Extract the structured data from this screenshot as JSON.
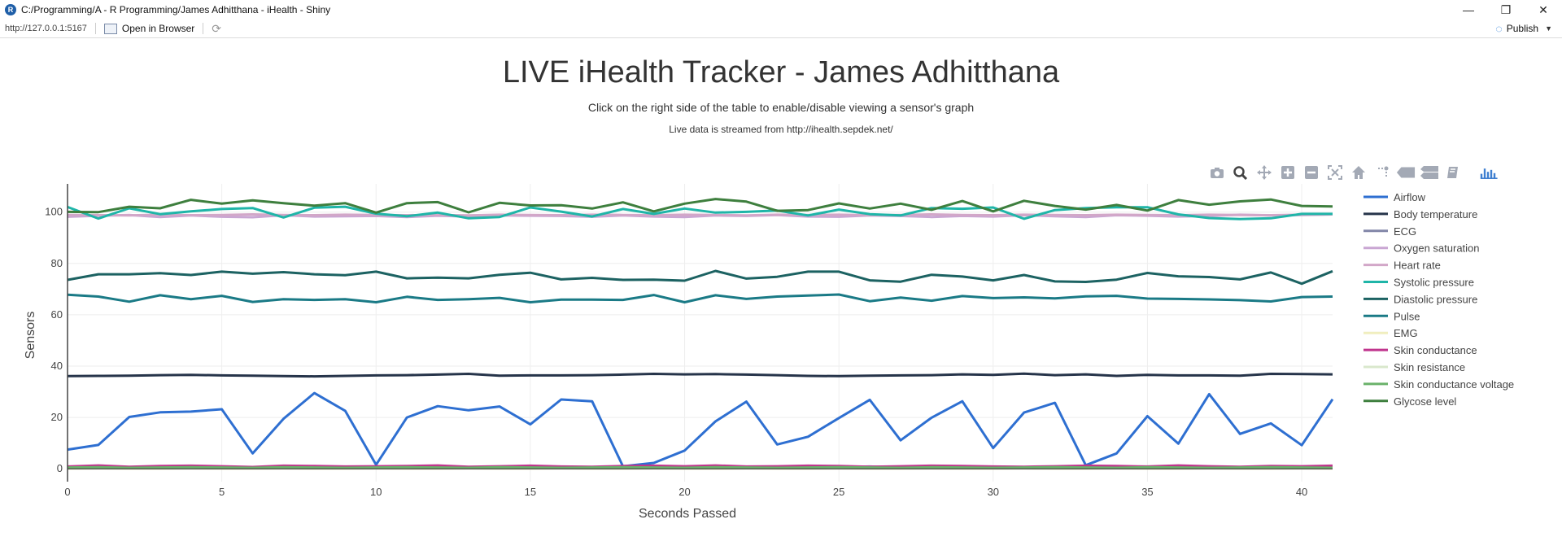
{
  "window": {
    "title": "C:/Programming/A - R Programming/James Adhitthana - iHealth - Shiny",
    "minimize": "—",
    "restore": "❐",
    "close": "✕"
  },
  "toolbar": {
    "url": "http://127.0.0.1:5167",
    "open_in_browser": "Open in Browser",
    "publish": "Publish"
  },
  "page": {
    "title": "LIVE iHealth Tracker - James Adhitthana",
    "subtitle": "Click on the right side of the table to enable/disable viewing a sensor's graph",
    "source_note": "Live data is streamed from http://ihealth.sepdek.net/"
  },
  "modebar": [
    "camera-icon",
    "zoom-icon",
    "pan-icon",
    "zoom-in-icon",
    "zoom-out-icon",
    "autoscale-icon",
    "home-icon",
    "spike-lines-icon",
    "hover-closest-icon",
    "hover-compare-icon",
    "edit-icon",
    "plotly-logo-icon"
  ],
  "chart_data": {
    "type": "line",
    "xlabel": "Seconds Passed",
    "ylabel": "Sensors",
    "xlim": [
      0,
      41
    ],
    "ylim": [
      -5,
      111
    ],
    "xticks": [
      0,
      5,
      10,
      15,
      20,
      25,
      30,
      35,
      40
    ],
    "yticks": [
      0,
      20,
      40,
      60,
      80,
      100
    ],
    "grid": true,
    "legend_position": "right",
    "x": [
      0,
      1,
      2,
      3,
      4,
      5,
      6,
      7,
      8,
      9,
      10,
      11,
      12,
      13,
      14,
      15,
      16,
      17,
      18,
      19,
      20,
      21,
      22,
      23,
      24,
      25,
      26,
      27,
      28,
      29,
      30,
      31,
      32,
      33,
      34,
      35,
      36,
      37,
      38,
      39,
      40,
      41
    ],
    "series": [
      {
        "name": "Airflow",
        "color": "#2e6fd1",
        "values": [
          7.5,
          9.3,
          20.2,
          22.0,
          22.3,
          23.2,
          6.0,
          19.5,
          29.5,
          22.6,
          1.6,
          20.0,
          24.4,
          22.8,
          24.3,
          17.3,
          27.0,
          26.3,
          1.0,
          2.3,
          7.1,
          18.5,
          26.2,
          9.5,
          12.5,
          19.8,
          26.9,
          11.1,
          19.9,
          26.3,
          8.1,
          21.9,
          25.7,
          1.4,
          6.0,
          20.5,
          9.8,
          29.1,
          13.6,
          17.7,
          9.2,
          27.1
        ]
      },
      {
        "name": "Body temperature",
        "color": "#26344a",
        "values": [
          36.1,
          36.2,
          36.3,
          36.5,
          36.6,
          36.4,
          36.3,
          36.1,
          36.0,
          36.2,
          36.4,
          36.5,
          36.7,
          37.0,
          36.3,
          36.4,
          36.4,
          36.5,
          36.7,
          37.0,
          36.8,
          36.9,
          36.7,
          36.5,
          36.2,
          36.1,
          36.3,
          36.4,
          36.5,
          36.8,
          36.6,
          37.1,
          36.5,
          36.8,
          36.2,
          36.6,
          36.4,
          36.4,
          36.3,
          37.0,
          36.9,
          36.8
        ]
      },
      {
        "name": "ECG",
        "color": "#8286a8",
        "values": [
          0.6,
          0.8,
          0.5,
          0.7,
          0.9,
          0.6,
          0.4,
          0.8,
          0.7,
          0.5,
          0.6,
          0.7,
          0.9,
          0.5,
          0.6,
          0.8,
          0.7,
          0.5,
          0.6,
          0.9,
          0.7,
          0.6,
          0.5,
          0.8,
          0.7,
          0.6,
          0.9,
          0.5,
          0.7,
          0.8,
          0.6,
          0.5,
          0.7,
          0.9,
          0.6,
          0.8,
          0.7,
          0.5,
          0.6,
          0.8,
          0.7,
          0.6
        ]
      },
      {
        "name": "Oxygen saturation",
        "color": "#c9a6d3",
        "values": [
          98.2,
          98.6,
          98.9,
          98.1,
          98.7,
          98.2,
          98.0,
          98.8,
          98.3,
          98.4,
          98.5,
          98.1,
          98.6,
          98.3,
          98.7,
          98.6,
          98.5,
          98.2,
          98.7,
          98.3,
          98.1,
          98.7,
          98.5,
          98.9,
          98.3,
          98.2,
          98.7,
          98.5,
          98.1,
          98.5,
          98.3,
          98.8,
          98.4,
          98.1,
          98.8,
          98.6,
          98.3,
          98.5,
          99.0,
          98.7,
          98.9,
          99.1
        ]
      },
      {
        "name": "Heart rate",
        "color": "#d2a7c8",
        "values": [
          98.9,
          98.8,
          98.7,
          99.0,
          98.8,
          98.9,
          99.1,
          98.9,
          98.8,
          99.0,
          98.9,
          98.8,
          98.9,
          98.7,
          99.0,
          98.9,
          98.8,
          99.0,
          98.9,
          98.8,
          99.0,
          98.9,
          98.7,
          99.0,
          98.9,
          99.0,
          98.8,
          98.9,
          99.1,
          98.9,
          98.8,
          99.0,
          98.9,
          98.8,
          99.0,
          98.9,
          98.8,
          99.0,
          98.9,
          98.8,
          99.0,
          99.1
        ]
      },
      {
        "name": "Systolic pressure",
        "color": "#1fb5a8",
        "values": [
          102.0,
          97.5,
          101.5,
          99.2,
          100.3,
          101.2,
          101.6,
          97.9,
          101.7,
          102.1,
          99.4,
          98.4,
          99.8,
          97.6,
          98.1,
          101.8,
          100.2,
          98.3,
          101.2,
          99.3,
          101.4,
          99.8,
          100.1,
          100.6,
          98.7,
          101.0,
          99.2,
          98.7,
          101.6,
          101.3,
          101.8,
          97.4,
          100.8,
          101.6,
          101.9,
          101.9,
          99.1,
          97.7,
          97.3,
          97.6,
          99.3,
          99.3
        ]
      },
      {
        "name": "Diastolic pressure",
        "color": "#1c6262",
        "values": [
          73.6,
          75.8,
          75.8,
          76.2,
          75.5,
          76.8,
          76.0,
          76.6,
          75.8,
          75.4,
          76.8,
          74.2,
          74.5,
          74.2,
          75.6,
          76.4,
          73.8,
          74.4,
          73.6,
          73.7,
          73.3,
          77.1,
          74.1,
          74.8,
          76.8,
          76.8,
          73.4,
          72.9,
          75.6,
          74.9,
          73.4,
          75.5,
          73.0,
          72.8,
          73.7,
          76.3,
          75.0,
          74.7,
          73.8,
          76.5,
          72.1,
          77.0
        ]
      },
      {
        "name": "Pulse",
        "color": "#1a7a86",
        "values": [
          67.8,
          67.1,
          65.1,
          67.6,
          66.1,
          67.4,
          65.0,
          66.1,
          65.8,
          66.1,
          64.9,
          67.0,
          65.8,
          66.1,
          66.6,
          64.9,
          65.9,
          65.9,
          65.8,
          67.7,
          64.9,
          67.6,
          66.2,
          67.1,
          67.5,
          67.9,
          65.3,
          66.7,
          65.5,
          67.3,
          66.5,
          66.8,
          66.4,
          67.2,
          67.4,
          66.3,
          66.2,
          66.0,
          65.7,
          65.2,
          66.9,
          67.1
        ]
      },
      {
        "name": "EMG",
        "color": "#f0eebf",
        "values": [
          0.1,
          0.2,
          0.1,
          0.1,
          0.2,
          0.1,
          0.1,
          0.2,
          0.1,
          0.1,
          0.2,
          0.1,
          0.1,
          0.2,
          0.1,
          0.1,
          0.2,
          0.1,
          0.1,
          0.2,
          0.1,
          0.1,
          0.2,
          0.1,
          0.1,
          0.2,
          0.1,
          0.1,
          0.2,
          0.1,
          0.1,
          0.2,
          0.1,
          0.1,
          0.2,
          0.1,
          0.1,
          0.2,
          0.1,
          0.1,
          0.2,
          0.1
        ]
      },
      {
        "name": "Skin conductance",
        "color": "#c0358d",
        "values": [
          0.9,
          1.3,
          0.8,
          1.1,
          1.2,
          1.0,
          0.7,
          1.2,
          1.1,
          0.9,
          1.0,
          1.1,
          1.3,
          0.8,
          1.0,
          1.2,
          0.9,
          0.8,
          1.1,
          1.2,
          1.0,
          1.3,
          0.9,
          1.0,
          1.2,
          1.1,
          0.8,
          1.0,
          1.2,
          1.1,
          0.9,
          0.8,
          1.0,
          1.2,
          1.1,
          0.9,
          1.3,
          1.0,
          0.8,
          1.1,
          1.0,
          1.2
        ]
      },
      {
        "name": "Skin resistance",
        "color": "#d9e8cc",
        "values": [
          0.3,
          0.4,
          0.3,
          0.4,
          0.3,
          0.4,
          0.3,
          0.4,
          0.3,
          0.4,
          0.3,
          0.4,
          0.3,
          0.4,
          0.3,
          0.4,
          0.3,
          0.4,
          0.3,
          0.4,
          0.3,
          0.4,
          0.3,
          0.4,
          0.3,
          0.4,
          0.3,
          0.4,
          0.3,
          0.4,
          0.3,
          0.4,
          0.3,
          0.4,
          0.3,
          0.4,
          0.3,
          0.4,
          0.3,
          0.4,
          0.3,
          0.4
        ]
      },
      {
        "name": "Skin conductance voltage",
        "color": "#6ab26a",
        "values": [
          0.5,
          0.6,
          0.4,
          0.5,
          0.6,
          0.5,
          0.4,
          0.6,
          0.5,
          0.4,
          0.5,
          0.6,
          0.5,
          0.4,
          0.6,
          0.5,
          0.4,
          0.5,
          0.6,
          0.5,
          0.4,
          0.6,
          0.5,
          0.4,
          0.5,
          0.6,
          0.5,
          0.4,
          0.6,
          0.5,
          0.4,
          0.5,
          0.6,
          0.5,
          0.4,
          0.6,
          0.5,
          0.4,
          0.5,
          0.6,
          0.5,
          0.4
        ]
      },
      {
        "name": "Glycose level",
        "color": "#3e7f3e",
        "values": [
          100.1,
          100.0,
          102.1,
          101.5,
          104.8,
          103.3,
          104.6,
          103.5,
          102.5,
          103.5,
          99.8,
          103.5,
          103.9,
          99.9,
          103.6,
          102.6,
          102.7,
          101.4,
          103.8,
          100.3,
          103.3,
          105.1,
          104.1,
          100.5,
          100.8,
          103.4,
          101.4,
          103.3,
          100.9,
          104.3,
          100.3,
          104.4,
          102.4,
          101.0,
          102.8,
          100.6,
          104.7,
          102.9,
          104.2,
          104.9,
          102.4,
          102.2
        ]
      }
    ]
  }
}
